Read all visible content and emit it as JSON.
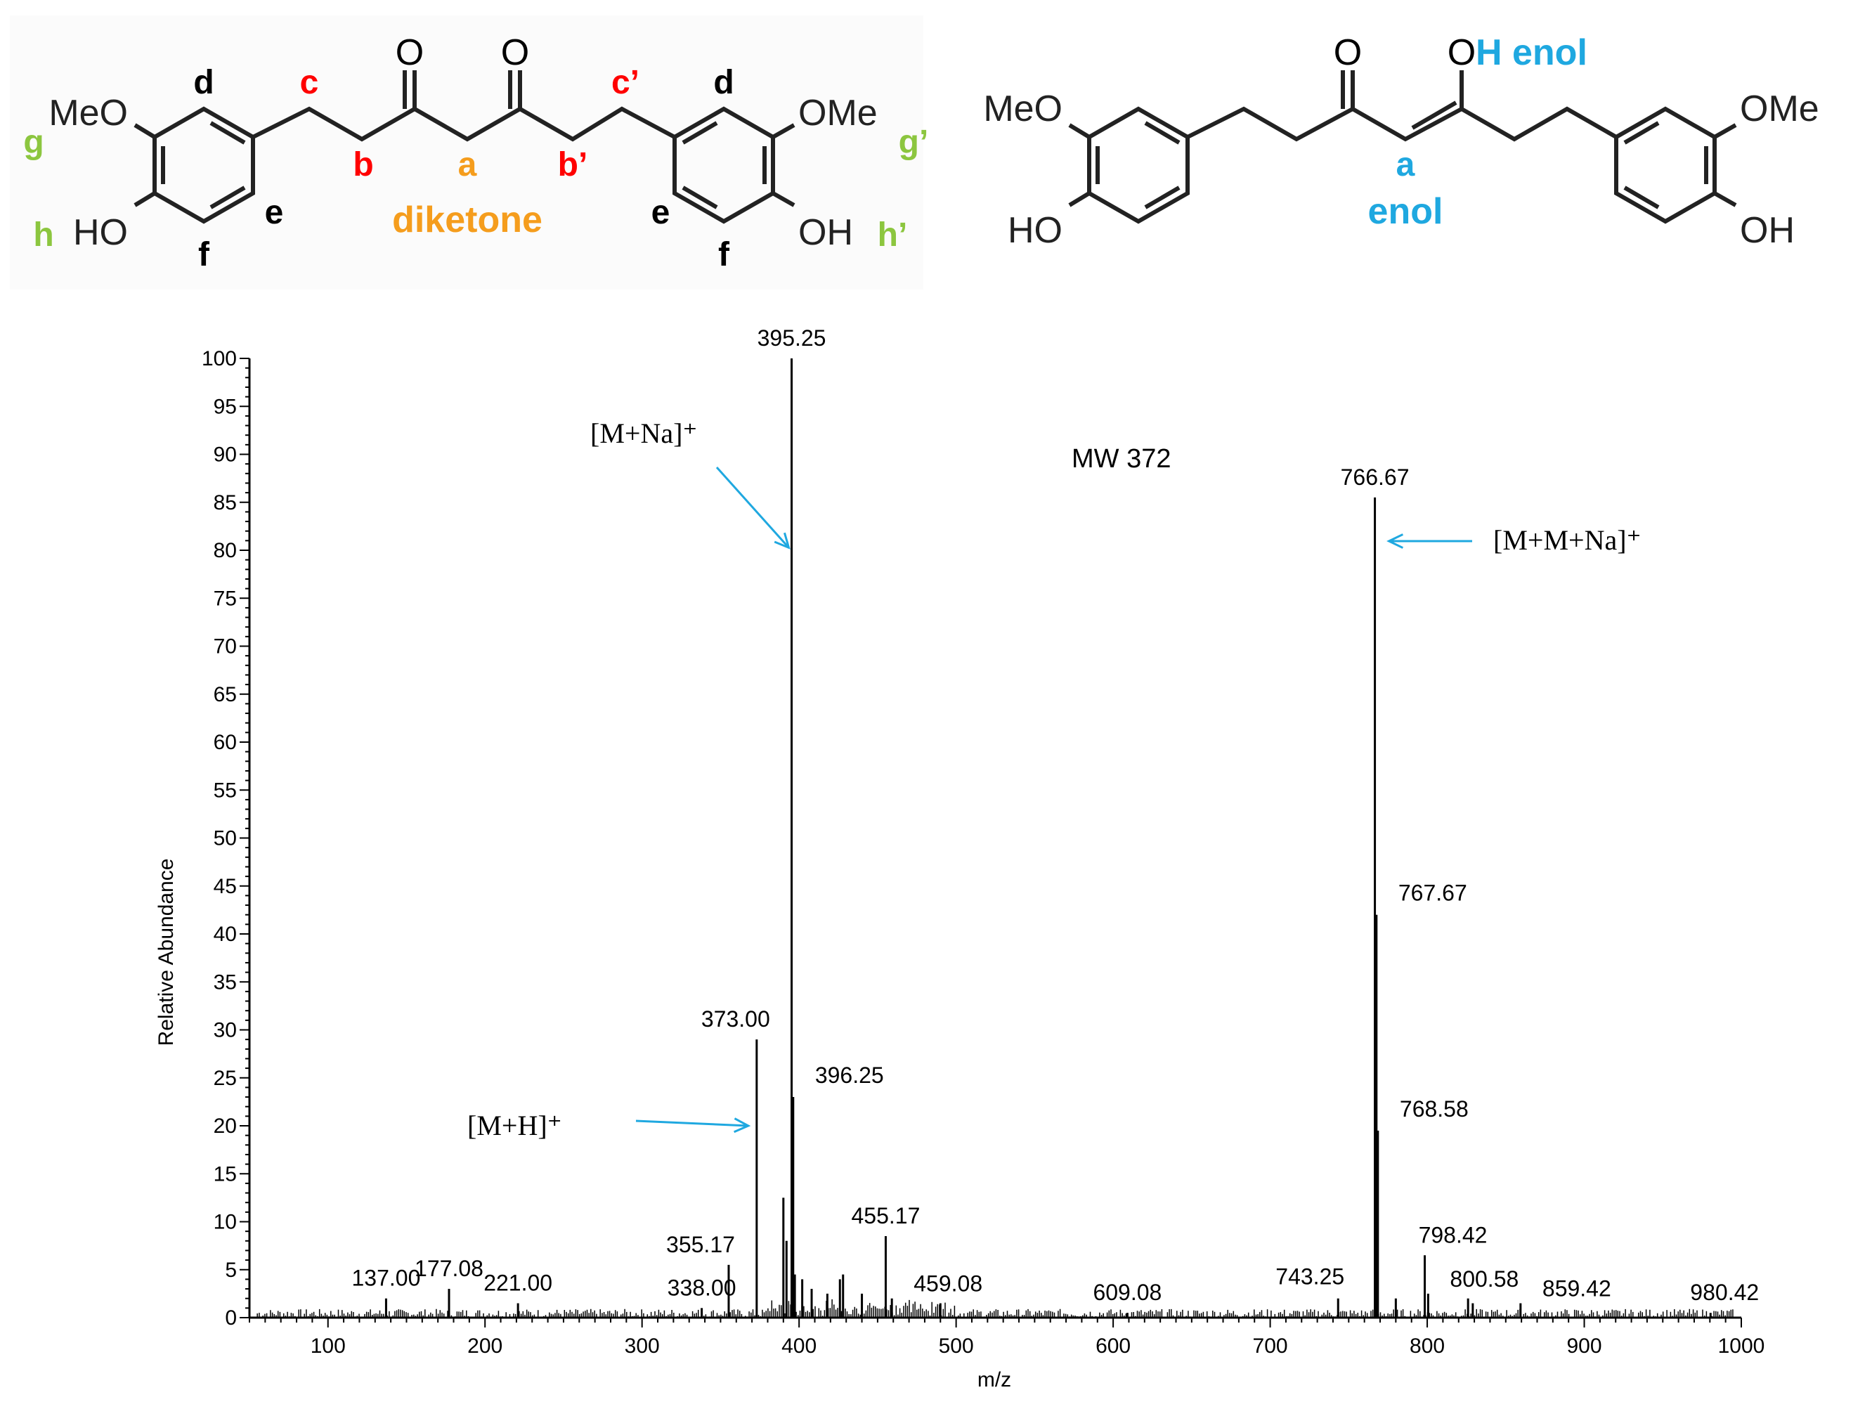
{
  "structures": {
    "diketone": {
      "substituents": {
        "meo": "MeO",
        "ho": "HO",
        "ome": "OMe",
        "oh": "OH",
        "o1": "O",
        "o2": "O"
      },
      "labels": {
        "d1": "d",
        "d2": "d",
        "e1": "e",
        "e2": "e",
        "f1": "f",
        "f2": "f",
        "c": "c",
        "b": "b",
        "a": "a",
        "b_prime": "b’",
        "c_prime": "c’",
        "g": "g",
        "h": "h",
        "g_prime": "g’",
        "h_prime": "h’"
      },
      "name": "diketone",
      "colors": {
        "red": "#ff0000",
        "orange": "#f59d1d",
        "green": "#8cc63f",
        "black": "#000000"
      }
    },
    "enol": {
      "substituents": {
        "meo": "MeO",
        "ho": "HO",
        "ome": "OMe",
        "oh": "OH",
        "o": "O",
        "o_enol": "O"
      },
      "labels": {
        "h_enol": "H enol",
        "a": "a",
        "name": "enol"
      },
      "colors": {
        "blue": "#1fa8e0"
      }
    }
  },
  "chart_data": {
    "type": "line",
    "title": "",
    "xlabel": "m/z",
    "ylabel": "Relative Abundance",
    "xlim": [
      50,
      1000
    ],
    "ylim": [
      0,
      100
    ],
    "x_ticks": [
      100,
      200,
      300,
      400,
      500,
      600,
      700,
      800,
      900,
      1000
    ],
    "y_ticks": [
      0,
      5,
      10,
      15,
      20,
      25,
      30,
      35,
      40,
      45,
      50,
      55,
      60,
      65,
      70,
      75,
      80,
      85,
      90,
      95,
      100
    ],
    "grid": false,
    "peaks": [
      {
        "mz": 137.0,
        "ab": 2,
        "label": "137.00"
      },
      {
        "mz": 177.08,
        "ab": 3,
        "label": "177.08"
      },
      {
        "mz": 221.0,
        "ab": 1.5,
        "label": "221.00"
      },
      {
        "mz": 338.0,
        "ab": 1,
        "label": "338.00"
      },
      {
        "mz": 355.17,
        "ab": 5.5,
        "label": "355.17"
      },
      {
        "mz": 373.0,
        "ab": 29,
        "label": "373.00"
      },
      {
        "mz": 390.0,
        "ab": 12.5
      },
      {
        "mz": 392.0,
        "ab": 8
      },
      {
        "mz": 395.25,
        "ab": 100,
        "label": "395.25"
      },
      {
        "mz": 396.25,
        "ab": 23,
        "label": "396.25"
      },
      {
        "mz": 397.3,
        "ab": 4.5
      },
      {
        "mz": 402.0,
        "ab": 4
      },
      {
        "mz": 408.0,
        "ab": 3
      },
      {
        "mz": 418.0,
        "ab": 2.5
      },
      {
        "mz": 426.0,
        "ab": 4
      },
      {
        "mz": 428.0,
        "ab": 4.5
      },
      {
        "mz": 440.0,
        "ab": 2.5
      },
      {
        "mz": 455.17,
        "ab": 8.5,
        "label": "455.17"
      },
      {
        "mz": 459.08,
        "ab": 2,
        "label": "459.08"
      },
      {
        "mz": 490.0,
        "ab": 1.5
      },
      {
        "mz": 609.08,
        "ab": 0.5,
        "label": "609.08"
      },
      {
        "mz": 743.25,
        "ab": 2,
        "label": "743.25"
      },
      {
        "mz": 766.67,
        "ab": 85.5,
        "label": "766.67"
      },
      {
        "mz": 767.67,
        "ab": 42,
        "label": "767.67"
      },
      {
        "mz": 768.58,
        "ab": 19.5,
        "label": "768.58"
      },
      {
        "mz": 780.0,
        "ab": 2
      },
      {
        "mz": 798.42,
        "ab": 6.5,
        "label": "798.42"
      },
      {
        "mz": 800.58,
        "ab": 2.5,
        "label": "800.58"
      },
      {
        "mz": 826.0,
        "ab": 2
      },
      {
        "mz": 829.0,
        "ab": 1.5
      },
      {
        "mz": 859.42,
        "ab": 1.5,
        "label": "859.42"
      },
      {
        "mz": 980.42,
        "ab": 0.5,
        "label": "980.42"
      }
    ],
    "annotations": [
      {
        "text": "[M+Na]⁺",
        "target_mz": 395.25,
        "target_ab": 81
      },
      {
        "text": "[M+H]⁺",
        "target_mz": 373.0,
        "target_ab": 20
      },
      {
        "text": "[M+M+Na]⁺",
        "target_mz": 766.67,
        "target_ab": 81
      },
      {
        "text": "MW 372"
      }
    ],
    "arrow_color": "#1fa8e0"
  }
}
